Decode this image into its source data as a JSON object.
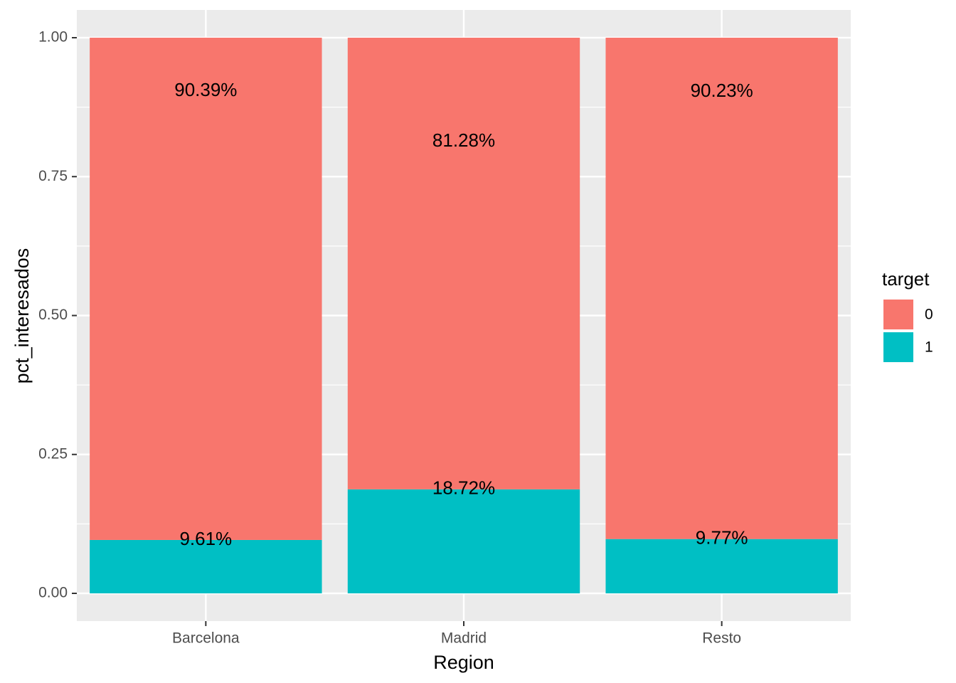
{
  "chart_data": {
    "type": "bar",
    "stacked": true,
    "xlabel": "Region",
    "ylabel": "pct_interesados",
    "categories": [
      "Barcelona",
      "Madrid",
      "Resto"
    ],
    "ylim": [
      0,
      1
    ],
    "yticks": [
      0.0,
      0.25,
      0.5,
      0.75,
      1.0
    ],
    "ytick_labels": [
      "0.00",
      "0.25",
      "0.50",
      "0.75",
      "1.00"
    ],
    "grid": true,
    "legend": {
      "title": "target",
      "position": "right"
    },
    "series": [
      {
        "name": "1",
        "color": "#00BFC4",
        "values": [
          0.0961,
          0.1872,
          0.0977
        ],
        "labels": [
          "9.61%",
          "18.72%",
          "9.77%"
        ]
      },
      {
        "name": "0",
        "color": "#F8766D",
        "values": [
          0.9039,
          0.8128,
          0.9023
        ],
        "labels": [
          "90.39%",
          "81.28%",
          "90.23%"
        ]
      }
    ]
  },
  "colors": {
    "panel_background": "#EBEBEB",
    "grid": "#FFFFFF",
    "tick": "#333333"
  }
}
